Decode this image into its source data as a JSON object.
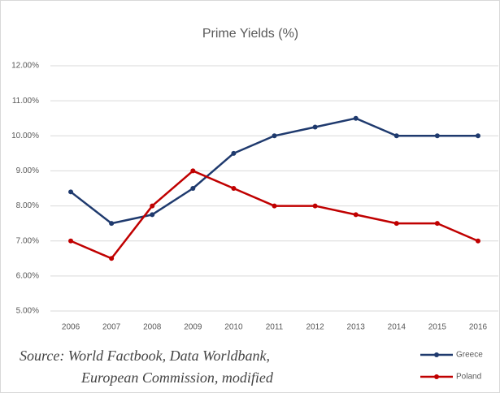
{
  "chart_data": {
    "type": "line",
    "title": "Prime Yields (%)",
    "categories": [
      "2006",
      "2007",
      "2008",
      "2009",
      "2010",
      "2011",
      "2012",
      "2013",
      "2014",
      "2015",
      "2016"
    ],
    "series": [
      {
        "name": "Greece",
        "color": "#1f3a6e",
        "values": [
          8.4,
          7.5,
          7.75,
          8.5,
          9.5,
          10.0,
          10.25,
          10.5,
          10.0,
          10.0,
          10.0
        ]
      },
      {
        "name": "Poland",
        "color": "#c00000",
        "values": [
          7.0,
          6.5,
          8.0,
          9.0,
          8.5,
          8.0,
          8.0,
          7.75,
          7.5,
          7.5,
          7.0
        ]
      }
    ],
    "ylim": [
      5,
      12
    ],
    "yticks": [
      {
        "value": 5,
        "label": "5.00%"
      },
      {
        "value": 6,
        "label": "6.00%"
      },
      {
        "value": 7,
        "label": "7.00%"
      },
      {
        "value": 8,
        "label": "8.00%"
      },
      {
        "value": 9,
        "label": "9.00%"
      },
      {
        "value": 10,
        "label": "10.00%"
      },
      {
        "value": 11,
        "label": "11.00%"
      },
      {
        "value": 12,
        "label": "12.00%"
      }
    ],
    "grid": true,
    "annotations": [
      "Source: World Factbook, Data Worldbank,",
      "European Commission, modified"
    ]
  }
}
